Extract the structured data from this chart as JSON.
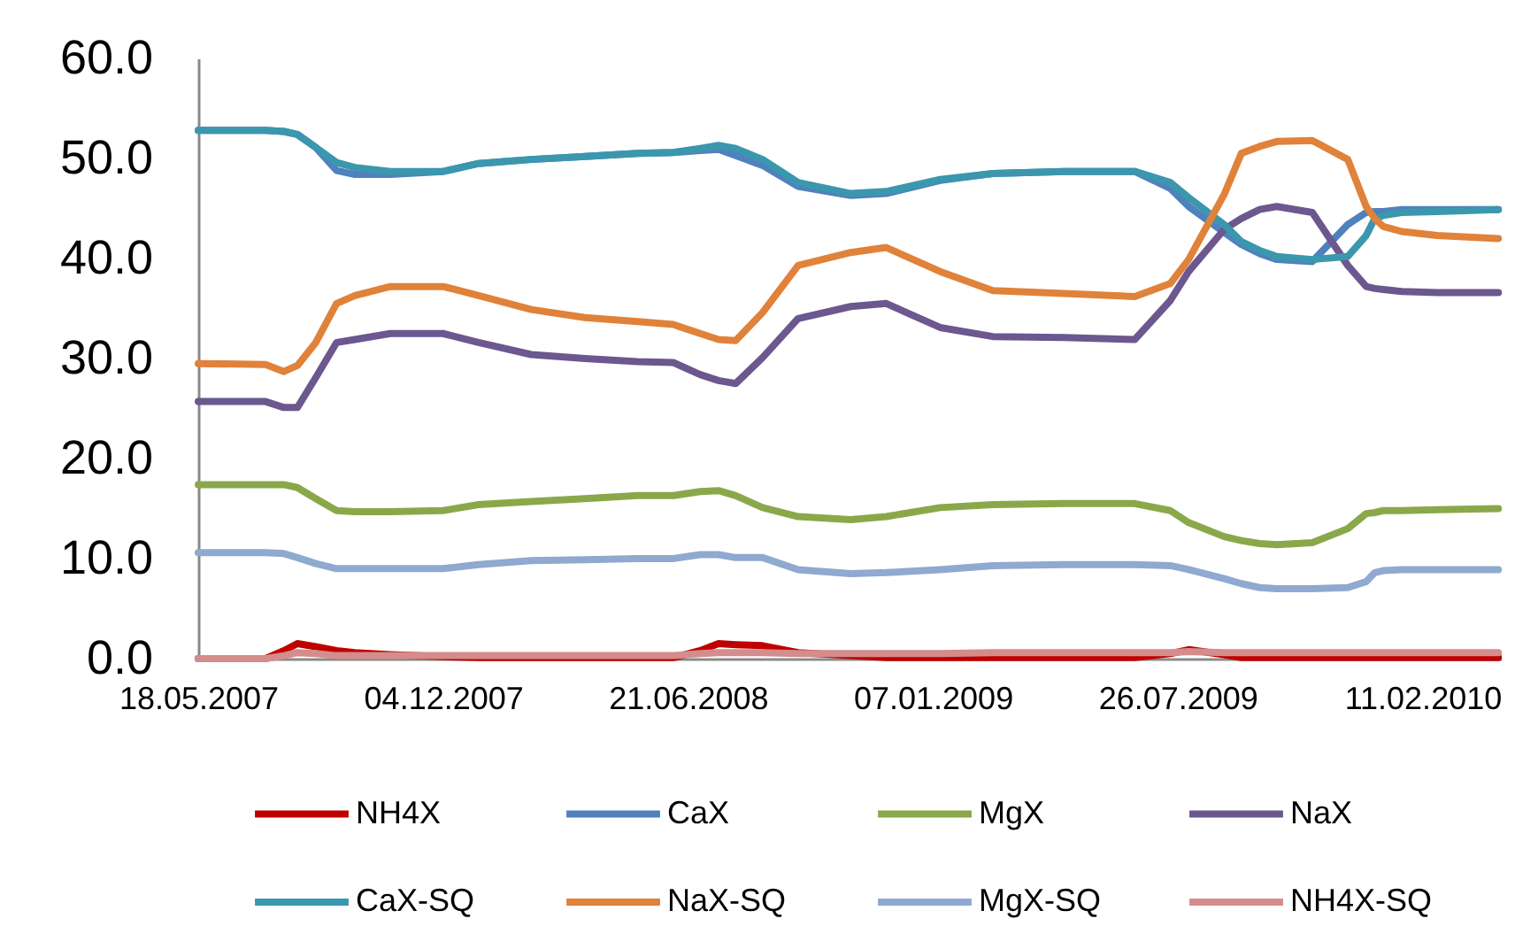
{
  "chart_data": {
    "type": "line",
    "legend": "bottom",
    "grid": false,
    "marker": "none",
    "line_style": "solid",
    "x": [
      "2007-05-18",
      "2007-07-12",
      "2007-07-27",
      "2007-08-07",
      "2007-08-22",
      "2007-09-08",
      "2007-09-23",
      "2007-10-22",
      "2007-12-04",
      "2008-01-02",
      "2008-02-14",
      "2008-03-29",
      "2008-05-11",
      "2008-06-09",
      "2008-07-01",
      "2008-07-16",
      "2008-07-30",
      "2008-08-21",
      "2008-09-19",
      "2008-11-01",
      "2008-11-30",
      "2009-01-13",
      "2009-02-25",
      "2009-04-24",
      "2009-06-21",
      "2009-07-20",
      "2009-08-04",
      "2009-09-02",
      "2009-09-16",
      "2009-10-01",
      "2009-10-15",
      "2009-11-13",
      "2009-12-12",
      "2009-12-27",
      "2010-01-03",
      "2010-01-10",
      "2010-01-25",
      "2010-02-23",
      "2010-04-14"
    ],
    "xlim": [
      "2007-05-18",
      "2010-04-16"
    ],
    "xticks": [
      {
        "value": "2007-05-18",
        "label": "18.05.2007"
      },
      {
        "value": "2007-12-04",
        "label": "04.12.2007"
      },
      {
        "value": "2008-06-21",
        "label": "21.06.2008"
      },
      {
        "value": "2009-01-07",
        "label": "07.01.2009"
      },
      {
        "value": "2009-07-26",
        "label": "26.07.2009"
      },
      {
        "value": "2010-02-11",
        "label": "11.02.2010"
      }
    ],
    "ylim": [
      0,
      60
    ],
    "yticks": [
      {
        "value": 0,
        "label": "0.0"
      },
      {
        "value": 10,
        "label": "10.0"
      },
      {
        "value": 20,
        "label": "20.0"
      },
      {
        "value": 30,
        "label": "30.0"
      },
      {
        "value": 40,
        "label": "40.0"
      },
      {
        "value": 50,
        "label": "50.0"
      },
      {
        "value": 60,
        "label": "60.0"
      }
    ],
    "series": [
      {
        "name": "NH4X",
        "color": "#c00000",
        "values": [
          0,
          0,
          0.8,
          1.5,
          1.2,
          0.8,
          0.6,
          0.4,
          0.2,
          0.1,
          0.1,
          0.1,
          0.1,
          0.1,
          0.8,
          1.5,
          1.4,
          1.3,
          0.6,
          0.3,
          0.1,
          0.1,
          0.1,
          0.1,
          0.1,
          0.5,
          0.9,
          0.4,
          0.1,
          0.1,
          0.1,
          0.1,
          0.1,
          0.1,
          0.1,
          0.1,
          0.1,
          0.1,
          0.1
        ]
      },
      {
        "name": "CaX",
        "color": "#4f81bd",
        "values": [
          52.8,
          52.8,
          52.7,
          52.4,
          51.1,
          48.8,
          48.4,
          48.4,
          48.7,
          49.5,
          49.9,
          50.2,
          50.5,
          50.6,
          50.8,
          50.9,
          50.3,
          49.3,
          47.2,
          46.3,
          46.5,
          47.8,
          48.5,
          48.7,
          48.7,
          47.0,
          45.2,
          42.6,
          41.4,
          40.5,
          39.9,
          39.7,
          43.4,
          44.6,
          44.7,
          44.7,
          44.9,
          44.9,
          44.9
        ]
      },
      {
        "name": "MgX",
        "color": "#8aa84a",
        "values": [
          17.4,
          17.4,
          17.4,
          17.1,
          16.0,
          14.8,
          14.7,
          14.7,
          14.8,
          15.4,
          15.7,
          16.0,
          16.3,
          16.3,
          16.7,
          16.8,
          16.3,
          15.1,
          14.2,
          13.9,
          14.2,
          15.1,
          15.4,
          15.5,
          15.5,
          14.8,
          13.6,
          12.2,
          11.8,
          11.5,
          11.4,
          11.6,
          13.0,
          14.5,
          14.6,
          14.8,
          14.8,
          14.9,
          15.0
        ]
      },
      {
        "name": "NaX",
        "color": "#6c578f",
        "values": [
          25.7,
          25.7,
          25.1,
          25.1,
          28.1,
          31.6,
          31.9,
          32.5,
          32.5,
          31.6,
          30.4,
          30.0,
          29.7,
          29.6,
          28.4,
          27.8,
          27.5,
          30.1,
          34.0,
          35.2,
          35.5,
          33.1,
          32.2,
          32.1,
          31.9,
          35.8,
          38.7,
          42.9,
          44.0,
          44.9,
          45.2,
          44.6,
          39.3,
          37.2,
          37.0,
          36.9,
          36.7,
          36.6,
          36.6
        ]
      },
      {
        "name": "CaX-SQ",
        "color": "#3b97ad",
        "values": [
          52.8,
          52.8,
          52.7,
          52.4,
          51.1,
          49.6,
          49.1,
          48.7,
          48.7,
          49.5,
          49.9,
          50.2,
          50.5,
          50.6,
          51.0,
          51.3,
          51.0,
          49.9,
          47.6,
          46.5,
          46.7,
          47.9,
          48.5,
          48.7,
          48.7,
          47.6,
          46.1,
          43.4,
          41.7,
          40.8,
          40.2,
          39.9,
          40.2,
          42.3,
          44.0,
          44.3,
          44.6,
          44.7,
          44.9
        ]
      },
      {
        "name": "NaX-SQ",
        "color": "#e0823a",
        "values": [
          29.5,
          29.4,
          28.7,
          29.3,
          31.6,
          35.5,
          36.3,
          37.2,
          37.2,
          36.3,
          34.9,
          34.1,
          33.7,
          33.4,
          32.5,
          31.9,
          31.8,
          34.6,
          39.3,
          40.6,
          41.1,
          38.7,
          36.8,
          36.5,
          36.2,
          37.5,
          39.9,
          46.4,
          50.5,
          51.2,
          51.7,
          51.8,
          49.9,
          45.2,
          44.0,
          43.2,
          42.7,
          42.3,
          42.0
        ]
      },
      {
        "name": "MgX-SQ",
        "color": "#8fa9d0",
        "values": [
          10.6,
          10.6,
          10.5,
          10.1,
          9.5,
          9.0,
          9.0,
          9.0,
          9.0,
          9.4,
          9.8,
          9.9,
          10.0,
          10.0,
          10.4,
          10.4,
          10.1,
          10.1,
          8.9,
          8.5,
          8.6,
          8.9,
          9.3,
          9.4,
          9.4,
          9.3,
          8.9,
          8.0,
          7.5,
          7.1,
          7.0,
          7.0,
          7.1,
          7.7,
          8.6,
          8.8,
          8.9,
          8.9,
          8.9
        ]
      },
      {
        "name": "NH4X-SQ",
        "color": "#d48c8c",
        "values": [
          0,
          0,
          0.3,
          0.6,
          0.5,
          0.3,
          0.3,
          0.3,
          0.3,
          0.3,
          0.3,
          0.3,
          0.3,
          0.3,
          0.5,
          0.6,
          0.6,
          0.6,
          0.5,
          0.5,
          0.5,
          0.5,
          0.6,
          0.6,
          0.6,
          0.6,
          0.7,
          0.6,
          0.6,
          0.6,
          0.6,
          0.6,
          0.6,
          0.6,
          0.6,
          0.6,
          0.6,
          0.6,
          0.6
        ]
      }
    ]
  }
}
